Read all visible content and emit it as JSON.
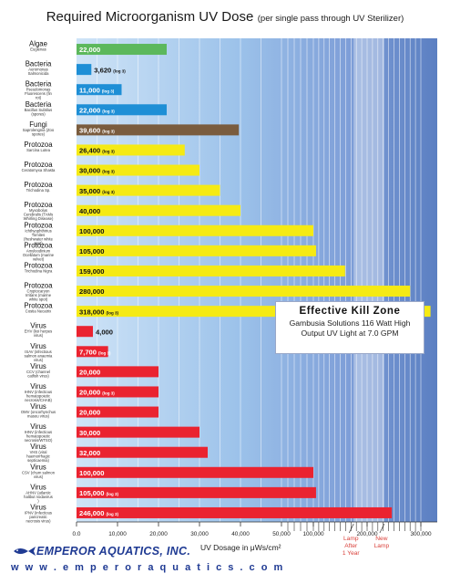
{
  "chart_data": {
    "type": "bar",
    "orientation": "horizontal",
    "title": "Required Microorganism UV Dose",
    "subtitle": "(per single pass through UV Sterilizer)",
    "xlabel": "UV Dosage in μWs/cm²",
    "x_ticks": [
      {
        "value": 0,
        "label": "0.0"
      },
      {
        "value": 10000,
        "label": "10,000"
      },
      {
        "value": 20000,
        "label": "20,000"
      },
      {
        "value": 30000,
        "label": "30,000"
      },
      {
        "value": 40000,
        "label": "40,000"
      },
      {
        "value": 50000,
        "label": "50,000"
      },
      {
        "value": 100000,
        "label": "100,000"
      },
      {
        "value": 200000,
        "label": "200,000"
      },
      {
        "value": 300000,
        "label": "300,000"
      }
    ],
    "scale": "compressed above 50,000",
    "categories": [
      {
        "group": "Algae",
        "name": "Euglenas",
        "value": 22000,
        "label": "22,000",
        "color": "#5cb85c"
      },
      {
        "group": "Bacteria",
        "name": "Aeromonas Salmonicida",
        "value": 3620,
        "label": "3,620",
        "tag": "(log 3)",
        "color": "#1e8fd6"
      },
      {
        "group": "Bacteria",
        "name": "Pseudomonas Fluorescens (fin rot)",
        "value": 11000,
        "label": "11,000",
        "tag": "(log 3)",
        "color": "#1e8fd6"
      },
      {
        "group": "Bacteria",
        "name": "Bacillus Subtilus (spores)",
        "value": 22000,
        "label": "22,000",
        "tag": "(log 3)",
        "color": "#1e8fd6"
      },
      {
        "group": "Fungi",
        "name": "Saprolengnia (Zoo spores)",
        "value": 39600,
        "label": "39,600",
        "tag": "(log 3)",
        "color": "#7a5c3e"
      },
      {
        "group": "Protozoa",
        "name": "Sarcina Lutea",
        "value": 26400,
        "label": "26,400",
        "tag": "(log 3)",
        "color": "#f5ea14"
      },
      {
        "group": "Protozoa",
        "name": "Ceratomyxa Shasta",
        "value": 30000,
        "label": "30,000",
        "tag": "(log 3)",
        "color": "#f5ea14"
      },
      {
        "group": "Protozoa",
        "name": "Trichodina Sp.",
        "value": 35000,
        "label": "35,000",
        "tag": "(log 3)",
        "color": "#f5ea14"
      },
      {
        "group": "Protozoa",
        "name": "Myxobolus Cerebralis (TAMs Whirling Disease)",
        "value": 40000,
        "label": "40,000",
        "color": "#f5ea14"
      },
      {
        "group": "Protozoa",
        "name": "Ichthyophthirius Tomites (freshwater white spot)",
        "value": 100000,
        "label": "100,000",
        "color": "#f5ea14"
      },
      {
        "group": "Protozoa",
        "name": "Amyloodinium Ocellatum (marine velvet)",
        "value": 105000,
        "label": "105,000",
        "color": "#f5ea14"
      },
      {
        "group": "Protozoa",
        "name": "Trichodina Nigra",
        "value": 159000,
        "label": "159,000",
        "color": "#f5ea14"
      },
      {
        "group": "Protozoa",
        "name": "Cryptocaryon Irritans (marine white spot)",
        "value": 280000,
        "label": "280,000",
        "color": "#f5ea14"
      },
      {
        "group": "Protozoa",
        "name": "Costia Necatrix",
        "value": 318000,
        "label": "318,000",
        "tag": "(log 3)",
        "color": "#f5ea14"
      },
      {
        "group": "Virus",
        "name": "EHV (koi herpes virus)",
        "value": 4000,
        "label": "4,000",
        "color": "#ea2330"
      },
      {
        "group": "Virus",
        "name": "ISAV (infectious salmon anaemia virus)",
        "value": 7700,
        "label": "7,700",
        "tag": "(log 3)",
        "color": "#ea2330"
      },
      {
        "group": "Virus",
        "name": "CCV (channel catfish virus)",
        "value": 20000,
        "label": "20,000",
        "color": "#ea2330"
      },
      {
        "group": "Virus",
        "name": "IHNV (infectious hematopoietic necrosis/CHAB)",
        "value": 20000,
        "label": "20,000",
        "tag": "(log 3)",
        "color": "#ea2330"
      },
      {
        "group": "Virus",
        "name": "OMV (oncorhynchus masou virus)",
        "value": 20000,
        "label": "20,000",
        "color": "#ea2330"
      },
      {
        "group": "Virus",
        "name": "IHNV (infectious hematopoietic necrosis/WTSO)",
        "value": 30000,
        "label": "30,000",
        "color": "#ea2330"
      },
      {
        "group": "Virus",
        "name": "VHS (viral haemorrhagic septicaemia)",
        "value": 32000,
        "label": "32,000",
        "color": "#ea2330"
      },
      {
        "group": "Virus",
        "name": "CSV (chum salmon virus)",
        "value": 100000,
        "label": "100,000",
        "color": "#ea2330"
      },
      {
        "group": "Virus",
        "name": "AHNV (atlantic halibut nodavirus )",
        "value": 105000,
        "label": "105,000",
        "tag": "(log 3)",
        "color": "#ea2330"
      },
      {
        "group": "Virus",
        "name": "IPNV (infectious pancreatic necrosis virus)",
        "value": 246000,
        "label": "246,000",
        "tag": "(log 3)",
        "color": "#ea2330"
      }
    ],
    "markers": [
      {
        "label_lines": [
          "Lamp",
          "After",
          "1 Year"
        ],
        "value": 175000,
        "color": "#d9403a"
      },
      {
        "label_lines": [
          "New",
          "Lamp"
        ],
        "value": 232000,
        "color": "#d9403a"
      }
    ],
    "zones": [
      {
        "name": "Effective Kill Zone",
        "from": 175000,
        "to": 232000
      }
    ]
  },
  "killzone": {
    "title": "Effective Kill Zone",
    "body": "Gambusia Solutions 116 Watt High Output UV Light at 7.0 GPM"
  },
  "brand": {
    "name": "EMPEROR AQUATICS, INC.",
    "website": "w w w . e m p e r o r a q u a t i c s . c o m"
  },
  "colors": {
    "plot_bg_start": "#cfe4f7",
    "plot_bg_end": "#5b7fc2",
    "brand": "#1f3a93"
  }
}
